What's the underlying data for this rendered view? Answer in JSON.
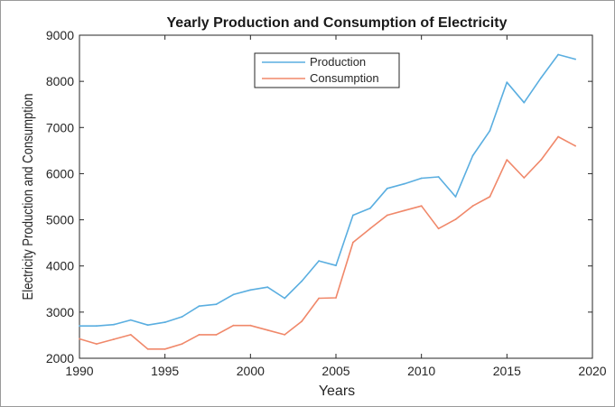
{
  "chart_data": {
    "type": "line",
    "title": "Yearly Production and Consumption of Electricity",
    "xlabel": "Years",
    "ylabel": "Electricity Production and Consumption",
    "xlim": [
      1990,
      2020
    ],
    "ylim": [
      2000,
      9000
    ],
    "xticks": [
      1990,
      1995,
      2000,
      2005,
      2010,
      2015,
      2020
    ],
    "yticks": [
      2000,
      3000,
      4000,
      5000,
      6000,
      7000,
      8000,
      9000
    ],
    "grid": false,
    "legend_position": "top-center",
    "x": [
      1990,
      1991,
      1992,
      1993,
      1994,
      1995,
      1996,
      1997,
      1998,
      1999,
      2000,
      2001,
      2002,
      2003,
      2004,
      2005,
      2006,
      2007,
      2008,
      2009,
      2010,
      2011,
      2012,
      2013,
      2014,
      2015,
      2016,
      2017,
      2018,
      2019
    ],
    "series": [
      {
        "name": "Production",
        "color": "#5aaee0",
        "values": [
          2700,
          2700,
          2730,
          2830,
          2720,
          2780,
          2900,
          3130,
          3170,
          3380,
          3480,
          3540,
          3300,
          3670,
          4110,
          4010,
          5100,
          5250,
          5680,
          5780,
          5900,
          5930,
          5500,
          6390,
          6930,
          7980,
          7540,
          8080,
          8580,
          8480
        ]
      },
      {
        "name": "Consumption",
        "color": "#f0886a",
        "values": [
          2420,
          2310,
          2410,
          2510,
          2200,
          2200,
          2310,
          2510,
          2510,
          2710,
          2710,
          2610,
          2510,
          2800,
          3300,
          3310,
          4510,
          4810,
          5100,
          5200,
          5300,
          4810,
          5010,
          5300,
          5500,
          6300,
          5910,
          6300,
          6800,
          6600
        ]
      }
    ]
  }
}
